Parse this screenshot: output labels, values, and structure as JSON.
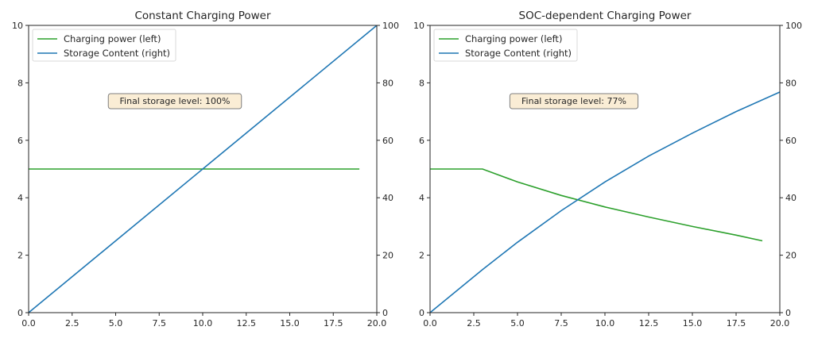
{
  "chart_data": [
    {
      "type": "line",
      "title": "Constant Charging Power",
      "xlabel": "",
      "ylabel_left": "",
      "ylabel_right": "",
      "xlim": [
        0,
        20
      ],
      "ylim_left": [
        0,
        10
      ],
      "ylim_right": [
        0,
        100
      ],
      "x_ticks": [
        "0.0",
        "2.5",
        "5.0",
        "7.5",
        "10.0",
        "12.5",
        "15.0",
        "17.5",
        "20.0"
      ],
      "y_left_ticks": [
        "0",
        "2",
        "4",
        "6",
        "8",
        "10"
      ],
      "y_right_ticks": [
        "0",
        "20",
        "40",
        "60",
        "80",
        "100"
      ],
      "grid": false,
      "legend_position": "upper left",
      "legend": [
        "Charging power (left)",
        "Storage Content (right)"
      ],
      "annotation": "Final storage level: 100%",
      "series": [
        {
          "name": "Charging power (left)",
          "axis": "left",
          "color": "#2ca02c",
          "x": [
            0,
            19
          ],
          "values": [
            5,
            5
          ]
        },
        {
          "name": "Storage Content (right)",
          "axis": "right",
          "color": "#1f77b4",
          "x": [
            0,
            20
          ],
          "values": [
            0,
            100
          ]
        }
      ]
    },
    {
      "type": "line",
      "title": "SOC-dependent Charging Power",
      "xlabel": "",
      "ylabel_left": "",
      "ylabel_right": "",
      "xlim": [
        0,
        20
      ],
      "ylim_left": [
        0,
        10
      ],
      "ylim_right": [
        0,
        100
      ],
      "x_ticks": [
        "0.0",
        "2.5",
        "5.0",
        "7.5",
        "10.0",
        "12.5",
        "15.0",
        "17.5",
        "20.0"
      ],
      "y_left_ticks": [
        "0",
        "2",
        "4",
        "6",
        "8",
        "10"
      ],
      "y_right_ticks": [
        "0",
        "20",
        "40",
        "60",
        "80",
        "100"
      ],
      "grid": false,
      "legend_position": "upper left",
      "legend": [
        "Charging power (left)",
        "Storage Content (right)"
      ],
      "annotation": "Final storage level: 77%",
      "series": [
        {
          "name": "Charging power (left)",
          "axis": "left",
          "color": "#2ca02c",
          "x": [
            0,
            3,
            5,
            7.5,
            10,
            12.5,
            15,
            17.5,
            19
          ],
          "values": [
            5,
            5,
            4.55,
            4.08,
            3.68,
            3.33,
            3.0,
            2.7,
            2.5
          ]
        },
        {
          "name": "Storage Content (right)",
          "axis": "right",
          "color": "#1f77b4",
          "x": [
            0,
            3,
            5,
            7.5,
            10,
            12.5,
            15,
            17.5,
            20
          ],
          "values": [
            0,
            15,
            24.5,
            35.5,
            45.5,
            54.5,
            62.5,
            70,
            76.8
          ]
        }
      ]
    }
  ]
}
